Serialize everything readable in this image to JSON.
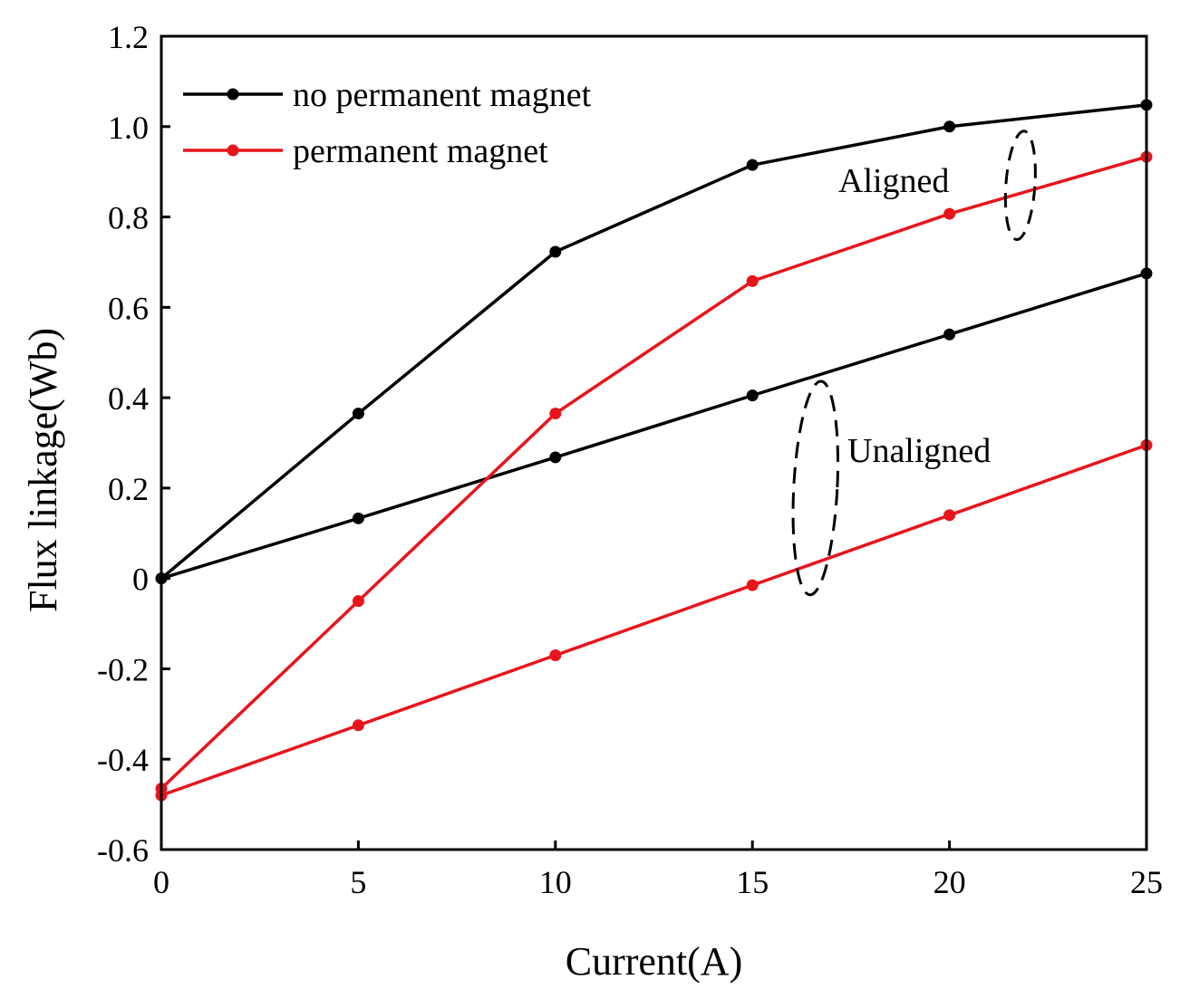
{
  "chart_data": {
    "type": "line",
    "xlabel": "Current(A)",
    "ylabel": "Flux linkage(Wb)",
    "xlim": [
      0,
      25
    ],
    "ylim": [
      -0.6,
      1.2
    ],
    "xticks": [
      0,
      5,
      10,
      15,
      20,
      25
    ],
    "xtick_labels": [
      "0",
      "5",
      "10",
      "15",
      "20",
      "25"
    ],
    "yticks": [
      -0.6,
      -0.4,
      -0.2,
      0,
      0.2,
      0.4,
      0.6,
      0.8,
      1.0,
      1.2
    ],
    "ytick_labels": [
      "-0.6",
      "-0.4",
      "-0.2",
      "0",
      "0.2",
      "0.4",
      "0.6",
      "0.8",
      "1.0",
      "1.2"
    ],
    "grid": false,
    "legend_position": "top-left",
    "legend": [
      {
        "label": "no permanent magnet",
        "color": "#000000"
      },
      {
        "label": "permanent magnet",
        "color": "#e8141c"
      }
    ],
    "x": [
      0,
      5,
      10,
      15,
      20,
      25
    ],
    "series": [
      {
        "legend_index": 0,
        "color": "#000000",
        "values": [
          0,
          0.365,
          0.723,
          0.915,
          1.0,
          1.048
        ]
      },
      {
        "legend_index": 0,
        "color": "#000000",
        "values": [
          0,
          0.133,
          0.268,
          0.405,
          0.54,
          0.675
        ]
      },
      {
        "legend_index": 1,
        "color": "#e8141c",
        "values": [
          -0.465,
          -0.05,
          0.365,
          0.658,
          0.807,
          0.933
        ]
      },
      {
        "legend_index": 1,
        "color": "#e8141c",
        "values": [
          -0.48,
          -0.325,
          -0.17,
          -0.015,
          0.14,
          0.295
        ]
      }
    ],
    "annotations": [
      {
        "text": "Aligned",
        "x": 21.5,
        "y": 0.87
      },
      {
        "text": "Unaligned",
        "x": 16.5,
        "y": 0.2
      }
    ]
  }
}
